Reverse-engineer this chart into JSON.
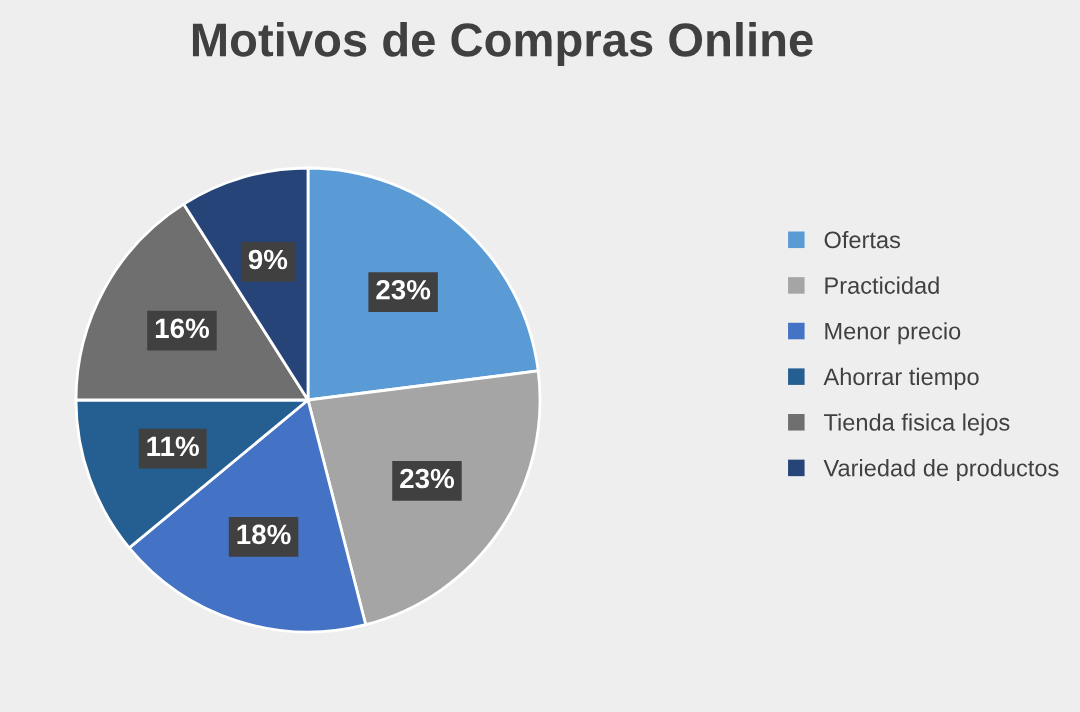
{
  "chart_data": {
    "type": "pie",
    "title": "Motivos de Compras Online",
    "categories": [
      "Ofertas",
      "Practicidad",
      "Menor precio",
      "Ahorrar tiempo",
      "Tienda fisica lejos",
      "Variedad de productos"
    ],
    "values": [
      23,
      23,
      18,
      11,
      16,
      9
    ],
    "colors": [
      "#5b9bd5",
      "#a5a5a5",
      "#4472c4",
      "#255e91",
      "#6f6f6f",
      "#264478"
    ],
    "value_labels": [
      "23%",
      "23%",
      "18%",
      "11%",
      "16%",
      "9%"
    ],
    "legend": "right"
  }
}
